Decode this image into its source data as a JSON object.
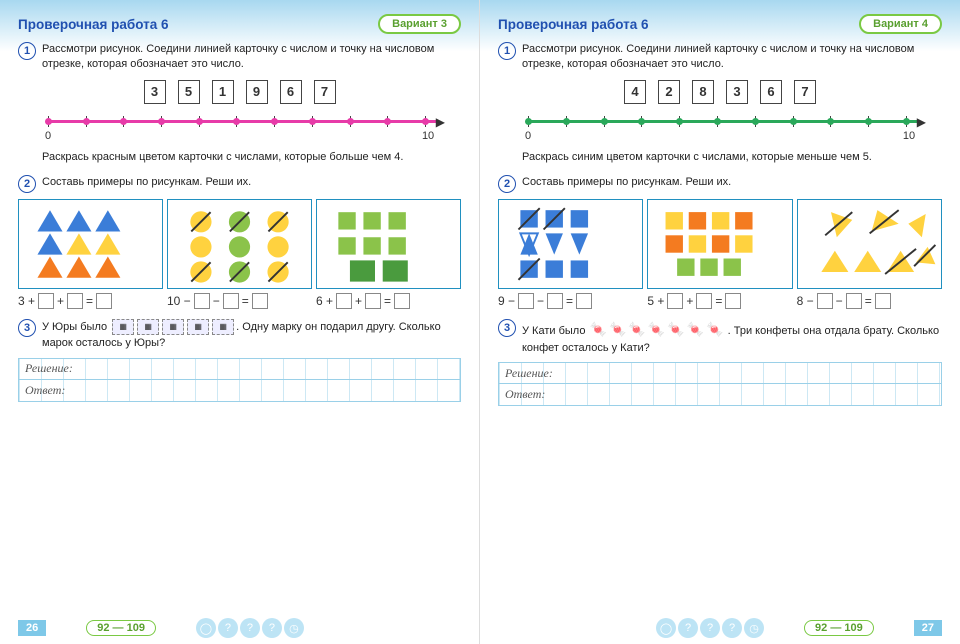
{
  "left": {
    "title": "Проверочная работа 6",
    "variant": "Вариант 3",
    "task1": {
      "num": "1",
      "text": "Рассмотри рисунок. Соедини линией карточку с числом и точку на числовом отрезке, ко­торая обозначает это число.",
      "cards": [
        "3",
        "5",
        "1",
        "9",
        "6",
        "7"
      ],
      "line_color": "#e73ba8",
      "dot_color": "#e73ba8",
      "start": "0",
      "end": "10",
      "sub": "Раскрась красным цветом карточки с числа­ми, которые больше чем 4."
    },
    "task2": {
      "num": "2",
      "text": "Составь примеры по рисункам. Реши их.",
      "eq1_prefix": "3 +",
      "eq2_prefix": "10 −",
      "eq3_prefix": "6 +",
      "colors": {
        "blue": "#3b7dd8",
        "yellow": "#ffd23f",
        "orange": "#f47b20",
        "green": "#8bc34a",
        "dgreen": "#4a9b3e",
        "cyan_border": "#2090c0"
      }
    },
    "task3": {
      "num": "3",
      "lead": "У Юры было",
      "stamps": 5,
      "rest": "Одну марку он подарил другу. Сколько ма­рок осталось у Юры?",
      "solution_label": "Решение:",
      "answer_label": "Ответ:"
    },
    "page_num": "26",
    "range": "92 — 109"
  },
  "right": {
    "title": "Проверочная работа 6",
    "variant": "Вариант 4",
    "task1": {
      "num": "1",
      "text": "Рассмотри рисунок. Соедини линией карточку с числом и точку на числовом отрезке, ко­торая обозначает это число.",
      "cards": [
        "4",
        "2",
        "8",
        "3",
        "6",
        "7"
      ],
      "line_color": "#2aa85a",
      "dot_color": "#2aa85a",
      "start": "0",
      "end": "10",
      "sub": "Раскрась синим цветом карточки с числами, которые меньше чем 5."
    },
    "task2": {
      "num": "2",
      "text": "Составь примеры по рисункам. Реши их.",
      "eq1_prefix": "9 −",
      "eq2_prefix": "5 +",
      "eq3_prefix": "8 −",
      "colors": {
        "blue": "#3b7dd8",
        "yellow": "#ffd23f",
        "orange": "#f47b20",
        "green": "#8bc34a",
        "dgreen": "#4a9b3e"
      }
    },
    "task3": {
      "num": "3",
      "lead": "У Кати было",
      "candies": 7,
      "rest": "Три конфеты она отдала брату. Сколько конфет осталось у Кати?",
      "solution_label": "Решение:",
      "answer_label": "Ответ:"
    },
    "page_num": "27",
    "range": "92 — 109"
  }
}
